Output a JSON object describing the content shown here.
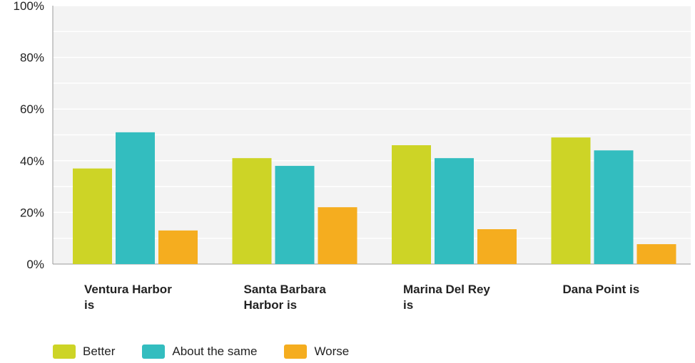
{
  "chart_data": {
    "type": "bar",
    "categories": [
      [
        "Ventura Harbor",
        "is"
      ],
      [
        "Santa Barbara",
        "Harbor is"
      ],
      [
        "Marina Del Rey",
        "is"
      ],
      [
        "Dana Point is"
      ]
    ],
    "series": [
      {
        "name": "Better",
        "color": "#cdd426",
        "values": [
          37,
          41,
          46,
          49
        ]
      },
      {
        "name": "About the same",
        "color": "#33bdbf",
        "values": [
          51,
          38,
          41,
          44
        ]
      },
      {
        "name": "Worse",
        "color": "#f5ad1f",
        "values": [
          13,
          22,
          13.5,
          7.7
        ]
      }
    ],
    "ylim": [
      0,
      100
    ],
    "yticks": [
      "0%",
      "20%",
      "40%",
      "60%",
      "80%",
      "100%"
    ],
    "grid": true,
    "legend_position": "bottom-left"
  }
}
